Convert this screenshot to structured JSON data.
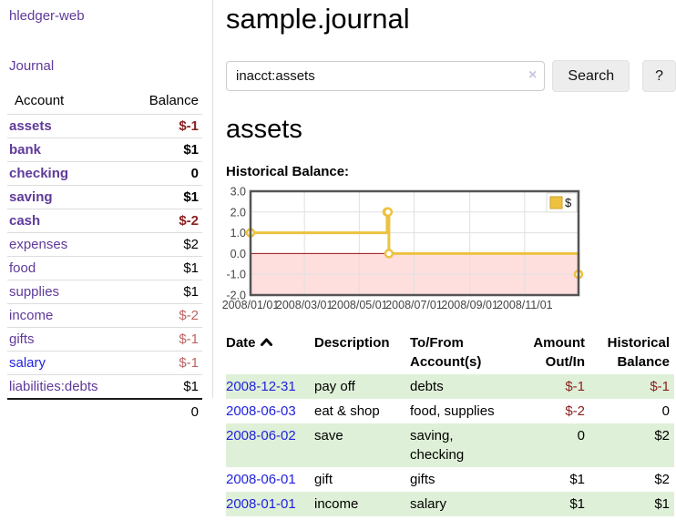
{
  "app": {
    "title": "hledger-web",
    "journal_link": "Journal"
  },
  "sidebar": {
    "headers": {
      "account": "Account",
      "balance": "Balance"
    },
    "rows": [
      {
        "account": "assets",
        "balance": "$-1"
      },
      {
        "account": "bank",
        "balance": "$1"
      },
      {
        "account": "checking",
        "balance": "0"
      },
      {
        "account": "saving",
        "balance": "$1"
      },
      {
        "account": "cash",
        "balance": "$-2"
      },
      {
        "account": "expenses",
        "balance": "$2"
      },
      {
        "account": "food",
        "balance": "$1"
      },
      {
        "account": "supplies",
        "balance": "$1"
      },
      {
        "account": "income",
        "balance": "$-2"
      },
      {
        "account": "gifts",
        "balance": "$-1"
      },
      {
        "account": "salary",
        "balance": "$-1"
      },
      {
        "account": "liabilities:debts",
        "balance": "$1"
      }
    ],
    "total": "0"
  },
  "main": {
    "title": "sample.journal",
    "search": {
      "value": "inacct:assets",
      "clear_icon": "×",
      "search_label": "Search",
      "help_label": "?"
    },
    "account_heading": "assets",
    "chart_heading": "Historical Balance:"
  },
  "chart_data": {
    "type": "line",
    "title": "Historical Balance:",
    "step": true,
    "series": [
      {
        "name": "$",
        "color": "#edc240",
        "points": [
          [
            "2008-01-01",
            1
          ],
          [
            "2008-06-01",
            2
          ],
          [
            "2008-06-02",
            2
          ],
          [
            "2008-06-03",
            0
          ],
          [
            "2008-12-31",
            -1
          ]
        ]
      }
    ],
    "xlim": [
      "2008-01-01",
      "2008-12-31"
    ],
    "ylim": [
      -2,
      3
    ],
    "x_ticks": [
      "2008/01/01",
      "2008/03/01",
      "2008/05/01",
      "2008/07/01",
      "2008/09/01",
      "2008/11/01"
    ],
    "y_ticks": [
      "3.0",
      "2.0",
      "1.0",
      "0.0",
      "-1.0",
      "-2.0"
    ],
    "grid": true,
    "negative_region_color": "#ffdede",
    "zero_line_color": "#991111",
    "legend": {
      "label": "$",
      "position": "top-right"
    }
  },
  "register": {
    "headers": {
      "date": "Date",
      "description": "Description",
      "accounts": "To/From Account(s)",
      "amount": "Amount Out/In",
      "balance": "Historical Balance"
    },
    "rows": [
      {
        "date": "2008-12-31",
        "description": "pay off",
        "accounts": "debts",
        "amount": "$-1",
        "balance": "$-1"
      },
      {
        "date": "2008-06-03",
        "description": "eat & shop",
        "accounts": "food, supplies",
        "amount": "$-2",
        "balance": "0"
      },
      {
        "date": "2008-06-02",
        "description": "save",
        "accounts": "saving, checking",
        "amount": "0",
        "balance": "$2"
      },
      {
        "date": "2008-06-01",
        "description": "gift",
        "accounts": "gifts",
        "amount": "$1",
        "balance": "$2"
      },
      {
        "date": "2008-01-01",
        "description": "income",
        "accounts": "salary",
        "amount": "$1",
        "balance": "$1"
      }
    ]
  }
}
